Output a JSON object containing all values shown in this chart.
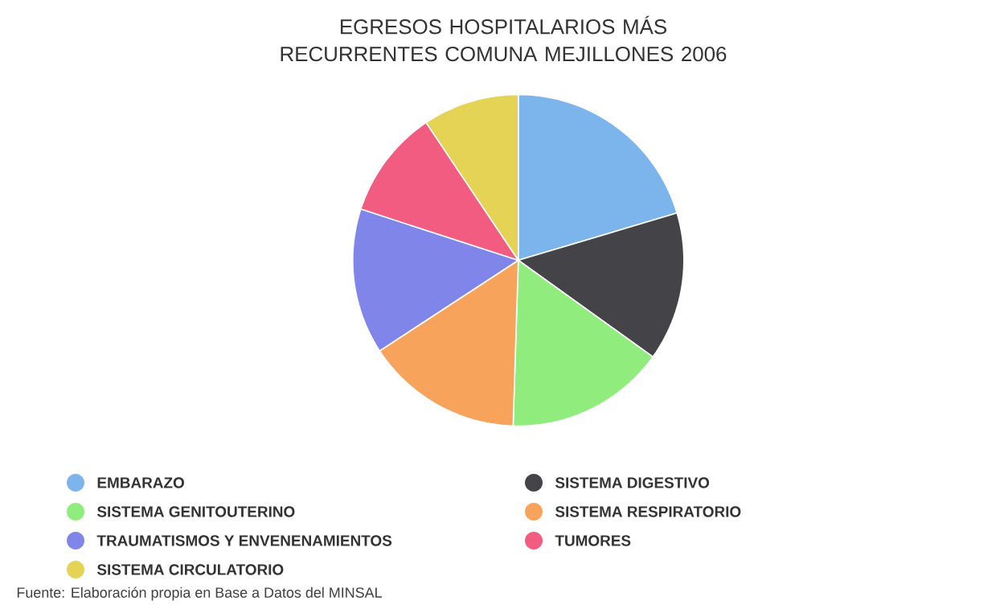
{
  "chart_data": {
    "type": "pie",
    "title": "EGRESOS HOSPITALARIOS MÁS RECURRENTES COMUNA MEJILLONES 2006",
    "categories": [
      "EMBARAZO",
      "SISTEMA DIGESTIVO",
      "SISTEMA GENITOUTERINO",
      "SISTEMA RESPIRATORIO",
      "TRAUMATISMOS Y ENVENENAMIENTOS",
      "TUMORES",
      "SISTEMA CIRCULATORIO"
    ],
    "values": [
      20.4,
      14.5,
      15.6,
      15.3,
      14.2,
      10.6,
      9.4
    ],
    "colors": [
      "#7cb5ec",
      "#434348",
      "#90ed7d",
      "#f7a35c",
      "#8085e9",
      "#f15c80",
      "#e4d354"
    ],
    "legend": "bottom",
    "annotations": [
      "Fuente: Elaboración propia en Base a Datos del MINSAL"
    ]
  }
}
